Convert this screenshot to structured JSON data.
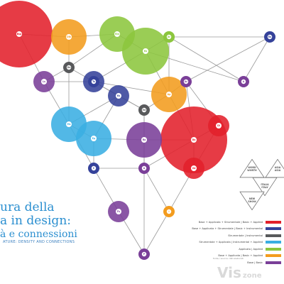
{
  "title": {
    "line1": "ura della",
    "line2": "a in design:",
    "line3": "à e connessioni"
  },
  "subtitle": "ATURE: DENSITY AND CONNECTIONS",
  "colors": {
    "red": "#e2202b",
    "green": "#8cc63e",
    "orange": "#f39c1e",
    "purple": "#7a3f98",
    "navy": "#35429a",
    "cyan": "#3aaee2",
    "gray": "#58595b",
    "line": "#9a9a9a"
  },
  "nodes": [
    {
      "id": "n1",
      "label": "Bsp",
      "color": "red",
      "size": "xl"
    },
    {
      "id": "n2",
      "label": "Dlk",
      "color": "orange",
      "size": "m"
    },
    {
      "id": "n3",
      "label": "Rin",
      "color": "green",
      "size": "m"
    },
    {
      "id": "n4",
      "label": "Ks",
      "color": "green",
      "size": "l"
    },
    {
      "id": "n5",
      "label": "Ks",
      "color": "green",
      "size": "xs"
    },
    {
      "id": "n6",
      "label": "Ts",
      "color": "navy",
      "size": "xs"
    },
    {
      "id": "n7",
      "label": "Ls",
      "color": "purple",
      "size": "s"
    },
    {
      "id": "n8",
      "label": "Ge",
      "color": "gray",
      "size": "xs"
    },
    {
      "id": "n9",
      "label": "Ks",
      "color": "navy",
      "size": "s"
    },
    {
      "id": "n10",
      "label": "Ra",
      "color": "navy",
      "size": "s"
    },
    {
      "id": "n11",
      "label": "Ap",
      "color": "orange",
      "size": "m"
    },
    {
      "id": "n12",
      "label": "Ar",
      "color": "purple",
      "size": "xs"
    },
    {
      "id": "n13",
      "label": "Ed",
      "color": "gray",
      "size": "xs"
    },
    {
      "id": "n14",
      "label": "Ms",
      "color": "cyan",
      "size": "m"
    },
    {
      "id": "n15",
      "label": "Ep",
      "color": "cyan",
      "size": "m"
    },
    {
      "id": "n16",
      "label": "Ra",
      "color": "purple",
      "size": "m"
    },
    {
      "id": "n17",
      "label": "Da",
      "color": "red",
      "size": "xl"
    },
    {
      "id": "n18",
      "label": "Di",
      "color": "red",
      "size": "s"
    },
    {
      "id": "n19",
      "label": "Vd",
      "color": "red",
      "size": "s"
    },
    {
      "id": "n20",
      "label": "C",
      "color": "navy",
      "size": "xs"
    },
    {
      "id": "n21",
      "label": "A",
      "color": "purple",
      "size": "xs"
    },
    {
      "id": "n22",
      "label": "P",
      "color": "purple",
      "size": "xs"
    },
    {
      "id": "n23",
      "label": "Fs",
      "color": "purple",
      "size": "s"
    },
    {
      "id": "n24",
      "label": "I",
      "color": "orange",
      "size": "xs"
    },
    {
      "id": "n25",
      "label": "Ar",
      "color": "green",
      "size": "xs"
    },
    {
      "id": "n26",
      "label": "Ks",
      "color": "navy",
      "size": "xs"
    },
    {
      "id": "n27",
      "label": "A",
      "color": "purple",
      "size": "xs"
    }
  ],
  "edges": [
    [
      "n1",
      "n2"
    ],
    [
      "n2",
      "n3"
    ],
    [
      "n3",
      "n4"
    ],
    [
      "n4",
      "n5"
    ],
    [
      "n5",
      "n26"
    ],
    [
      "n1",
      "n7"
    ],
    [
      "n2",
      "n8"
    ],
    [
      "n3",
      "n8"
    ],
    [
      "n4",
      "n10"
    ],
    [
      "n4",
      "n11"
    ],
    [
      "n4",
      "n27"
    ],
    [
      "n5",
      "n11"
    ],
    [
      "n5",
      "n27"
    ],
    [
      "n26",
      "n27"
    ],
    [
      "n6",
      "n8"
    ],
    [
      "n7",
      "n8"
    ],
    [
      "n6",
      "n9"
    ],
    [
      "n7",
      "n14"
    ],
    [
      "n8",
      "n14"
    ],
    [
      "n9",
      "n13"
    ],
    [
      "n9",
      "n14"
    ],
    [
      "n10",
      "n11"
    ],
    [
      "n10",
      "n9"
    ],
    [
      "n11",
      "n13"
    ],
    [
      "n11",
      "n17"
    ],
    [
      "n12",
      "n17"
    ],
    [
      "n12",
      "n11"
    ],
    [
      "n26",
      "n12"
    ],
    [
      "n14",
      "n15"
    ],
    [
      "n13",
      "n16"
    ],
    [
      "n15",
      "n16"
    ],
    [
      "n16",
      "n17"
    ],
    [
      "n14",
      "n20"
    ],
    [
      "n15",
      "n20"
    ],
    [
      "n16",
      "n21"
    ],
    [
      "n20",
      "n21"
    ],
    [
      "n21",
      "n17"
    ],
    [
      "n17",
      "n18"
    ],
    [
      "n17",
      "n19"
    ],
    [
      "n12",
      "n18"
    ],
    [
      "n18",
      "n19"
    ],
    [
      "n20",
      "n23"
    ],
    [
      "n21",
      "n24"
    ],
    [
      "n23",
      "n22"
    ],
    [
      "n24",
      "n22"
    ],
    [
      "n21",
      "n22"
    ],
    [
      "n19",
      "n24"
    ],
    [
      "n13",
      "n21"
    ],
    [
      "n9",
      "n15"
    ],
    [
      "n7",
      "n6"
    ],
    [
      "n10",
      "n13"
    ]
  ],
  "triangles": [
    {
      "label1": "WORD",
      "label2": "WORTH"
    },
    {
      "label1": "ITALIA",
      "label2": "ITALY"
    },
    {
      "label1": "ASIA",
      "label2": "ASIA"
    },
    {
      "label1": "NEW",
      "label2": "SHOW"
    }
  ],
  "legend": [
    {
      "label": "Base + Applicata + Strumentale | Basic + Applied",
      "color": "#e2202b"
    },
    {
      "label": "Base + Applicata + Strumentale | Basic + Instrumental",
      "color": "#35429a"
    },
    {
      "label": "Strumentale | Instrumental",
      "color": "#58595b"
    },
    {
      "label": "Strumentale + Applicata | Instrumental + Applied",
      "color": "#3aaee2"
    },
    {
      "label": "Applicata | Applied",
      "color": "#8cc63e"
    },
    {
      "label": "Base + Applicata | Basic + Applied",
      "color": "#f39c1e"
    },
    {
      "label": "Base | Basic",
      "color": "#7a3f98"
    }
  ],
  "footnote": "fonte / source: dati elaborati",
  "watermark": {
    "main": "Vis",
    "small": "zone"
  }
}
